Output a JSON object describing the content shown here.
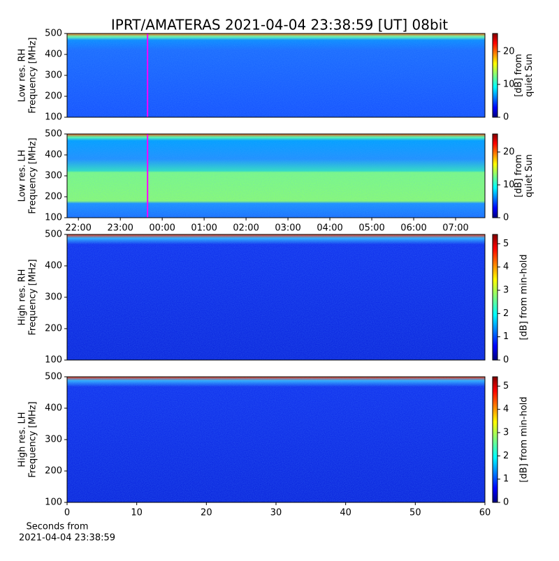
{
  "title": "IPRT/AMATERAS 2021-04-04 23:38:59 [UT]   08bit",
  "xlabel": [
    "Seconds from",
    "2021-04-04 23:38:59"
  ],
  "chart_data": [
    {
      "type": "spectrogram",
      "ylabel": [
        "Low res. RH",
        "Frequency [MHz]"
      ],
      "ylim": [
        100,
        500
      ],
      "yticks": [
        100,
        200,
        300,
        400,
        500
      ],
      "xlim": [
        21.73,
        31.7
      ],
      "cursor_x": 23.65,
      "cursor_color": "#ff00ff",
      "clabel": [
        "[dB] from",
        "quiet Sun"
      ],
      "clim": [
        0,
        25.5
      ],
      "cticks": [
        0,
        10,
        20
      ]
    },
    {
      "type": "spectrogram",
      "ylabel": [
        "Low res. LH",
        "Frequency [MHz]"
      ],
      "ylim": [
        100,
        500
      ],
      "yticks": [
        100,
        200,
        300,
        400,
        500
      ],
      "xlim": [
        21.73,
        31.7
      ],
      "cursor_x": 23.65,
      "cursor_color": "#ff00ff",
      "xticks": [
        {
          "value": 22,
          "label": "22:00"
        },
        {
          "value": 23,
          "label": "23:00"
        },
        {
          "value": 24,
          "label": "00:00"
        },
        {
          "value": 25,
          "label": "01:00"
        },
        {
          "value": 26,
          "label": "02:00"
        },
        {
          "value": 27,
          "label": "03:00"
        },
        {
          "value": 28,
          "label": "04:00"
        },
        {
          "value": 29,
          "label": "05:00"
        },
        {
          "value": 30,
          "label": "06:00"
        },
        {
          "value": 31,
          "label": "07:00"
        }
      ],
      "clabel": [
        "[dB] from",
        "quiet Sun"
      ],
      "clim": [
        0,
        25.5
      ],
      "cticks": [
        0,
        10,
        20
      ]
    },
    {
      "type": "spectrogram",
      "ylabel": [
        "High res. RH",
        "Frequency [MHz]"
      ],
      "ylim": [
        100,
        500
      ],
      "yticks": [
        100,
        200,
        300,
        400,
        500
      ],
      "xlim": [
        0,
        60
      ],
      "clabel": [
        "[dB] from min-hold"
      ],
      "clim": [
        0,
        5.4
      ],
      "cticks": [
        0,
        1,
        2,
        3,
        4,
        5
      ]
    },
    {
      "type": "spectrogram",
      "ylabel": [
        "High res. LH",
        "Frequency [MHz]"
      ],
      "ylim": [
        100,
        500
      ],
      "yticks": [
        100,
        200,
        300,
        400,
        500
      ],
      "xlim": [
        0,
        60
      ],
      "xticks": [
        0,
        10,
        20,
        30,
        40,
        50,
        60
      ],
      "clabel": [
        "[dB] from min-hold"
      ],
      "clim": [
        0,
        5.4
      ],
      "cticks": [
        0,
        1,
        2,
        3,
        4,
        5
      ]
    }
  ]
}
